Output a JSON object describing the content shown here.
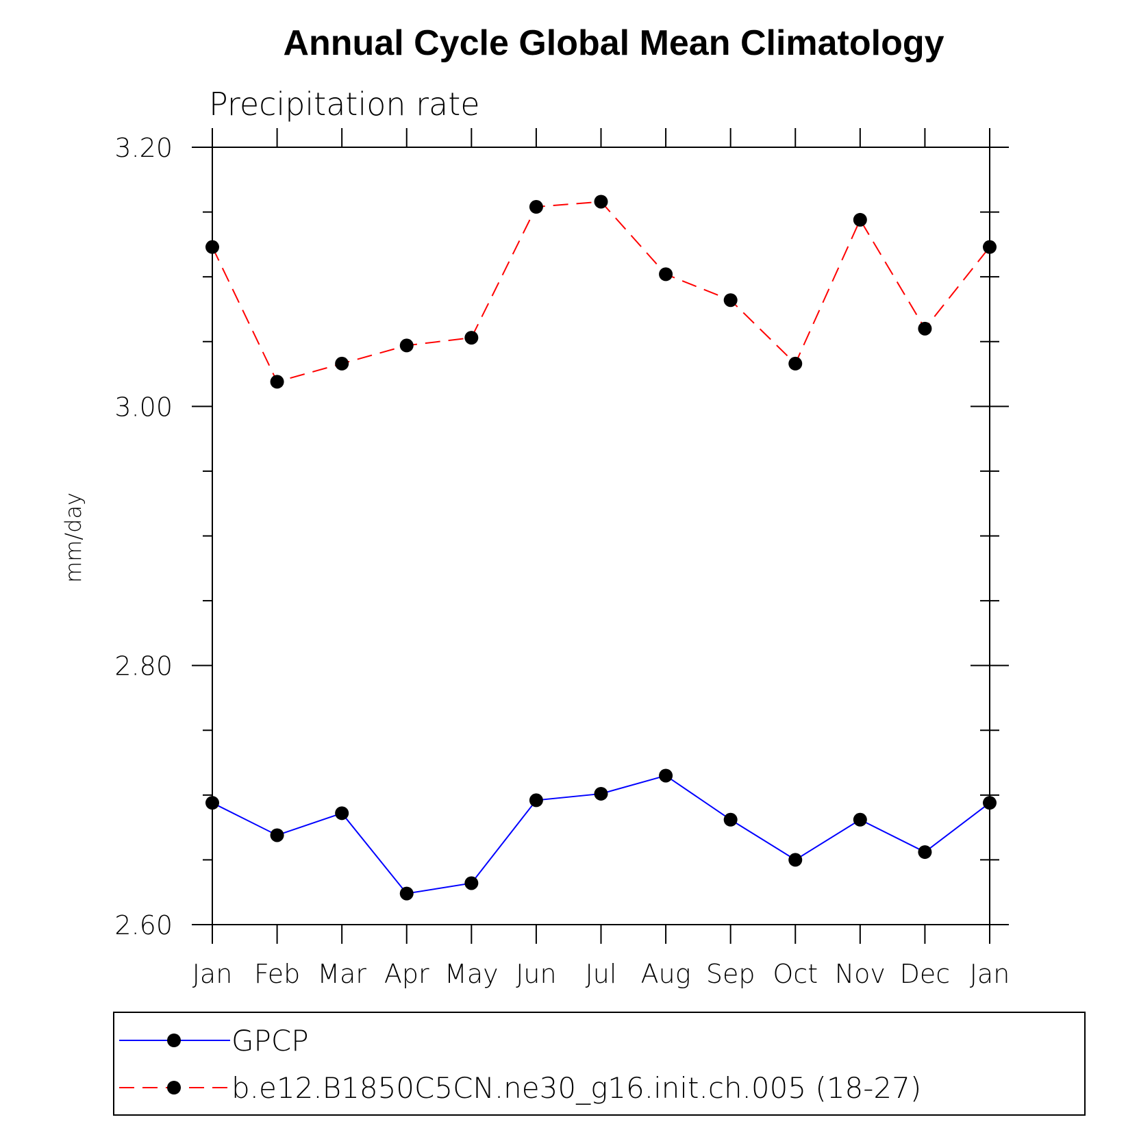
{
  "chart_data": {
    "type": "line",
    "title": "Annual Cycle Global Mean Climatology",
    "subtitle": "Precipitation rate",
    "xlabel": "",
    "ylabel": "mm/day",
    "categories": [
      "Jan",
      "Feb",
      "Mar",
      "Apr",
      "May",
      "Jun",
      "Jul",
      "Aug",
      "Sep",
      "Oct",
      "Nov",
      "Dec",
      "Jan"
    ],
    "ylim": [
      2.6,
      3.2
    ],
    "yticks": [
      "2.60",
      "2.80",
      "3.00",
      "3.20"
    ],
    "series": [
      {
        "name": "GPCP",
        "color": "#0000ff",
        "dash": "solid",
        "values": [
          2.694,
          2.669,
          2.686,
          2.624,
          2.632,
          2.696,
          2.701,
          2.715,
          2.681,
          2.65,
          2.681,
          2.656,
          2.694
        ]
      },
      {
        "name": "b.e12.B1850C5CN.ne30_g16.init.ch.005 (18-27)",
        "color": "#ff0000",
        "dash": "dashed",
        "values": [
          3.123,
          3.019,
          3.033,
          3.047,
          3.053,
          3.154,
          3.158,
          3.102,
          3.082,
          3.033,
          3.144,
          3.06,
          3.123
        ]
      }
    ],
    "legend_position": "bottom"
  }
}
